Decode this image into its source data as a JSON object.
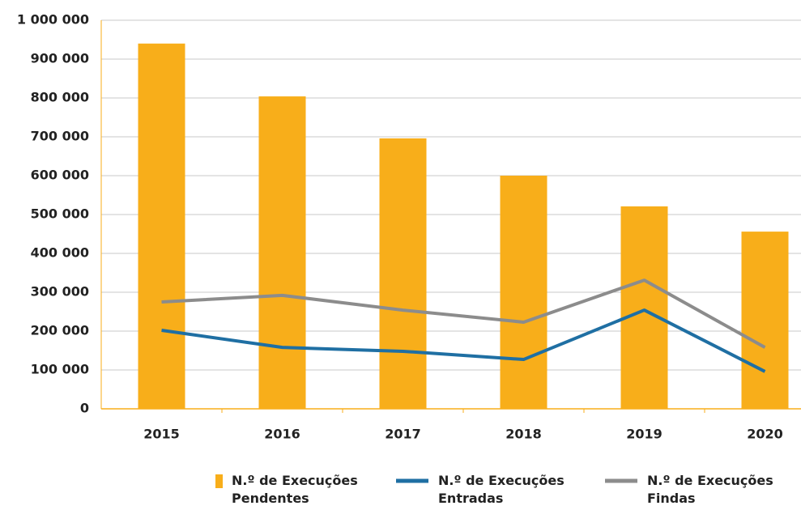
{
  "chart_data": {
    "type": "bar",
    "categories": [
      "2015",
      "2016",
      "2017",
      "2018",
      "2019",
      "2020"
    ],
    "series": [
      {
        "name": "N.º de Execuções Pendentes",
        "type": "bar",
        "color": "#f8ae1a",
        "values": [
          940000,
          804000,
          696000,
          600000,
          521000,
          456000
        ]
      },
      {
        "name": "N.º de Execuções Entradas",
        "type": "line",
        "color": "#1f6fa3",
        "values": [
          202000,
          158000,
          148000,
          127000,
          254000,
          96000
        ]
      },
      {
        "name": "N.º de Execuções Findas",
        "type": "line",
        "color": "#8c8c8c",
        "values": [
          275000,
          292000,
          254000,
          223000,
          331000,
          158000
        ]
      }
    ],
    "ylim": [
      0,
      1000000
    ],
    "yticks": [
      0,
      {
        "value": 100000,
        "label": "100 000"
      },
      {
        "value": 200000,
        "label": "200 000"
      },
      {
        "value": 300000,
        "label": "300 000"
      },
      {
        "value": 400000,
        "label": "400 000"
      },
      {
        "value": 500000,
        "label": "500 000"
      },
      {
        "value": 600000,
        "label": "600 000"
      },
      {
        "value": 700000,
        "label": "700 000"
      },
      {
        "value": 800000,
        "label": "800 000"
      },
      {
        "value": 900000,
        "label": "900 000"
      },
      {
        "value": 1000000,
        "label": "1 000 000"
      }
    ],
    "grid": true,
    "legend": "bottom"
  }
}
